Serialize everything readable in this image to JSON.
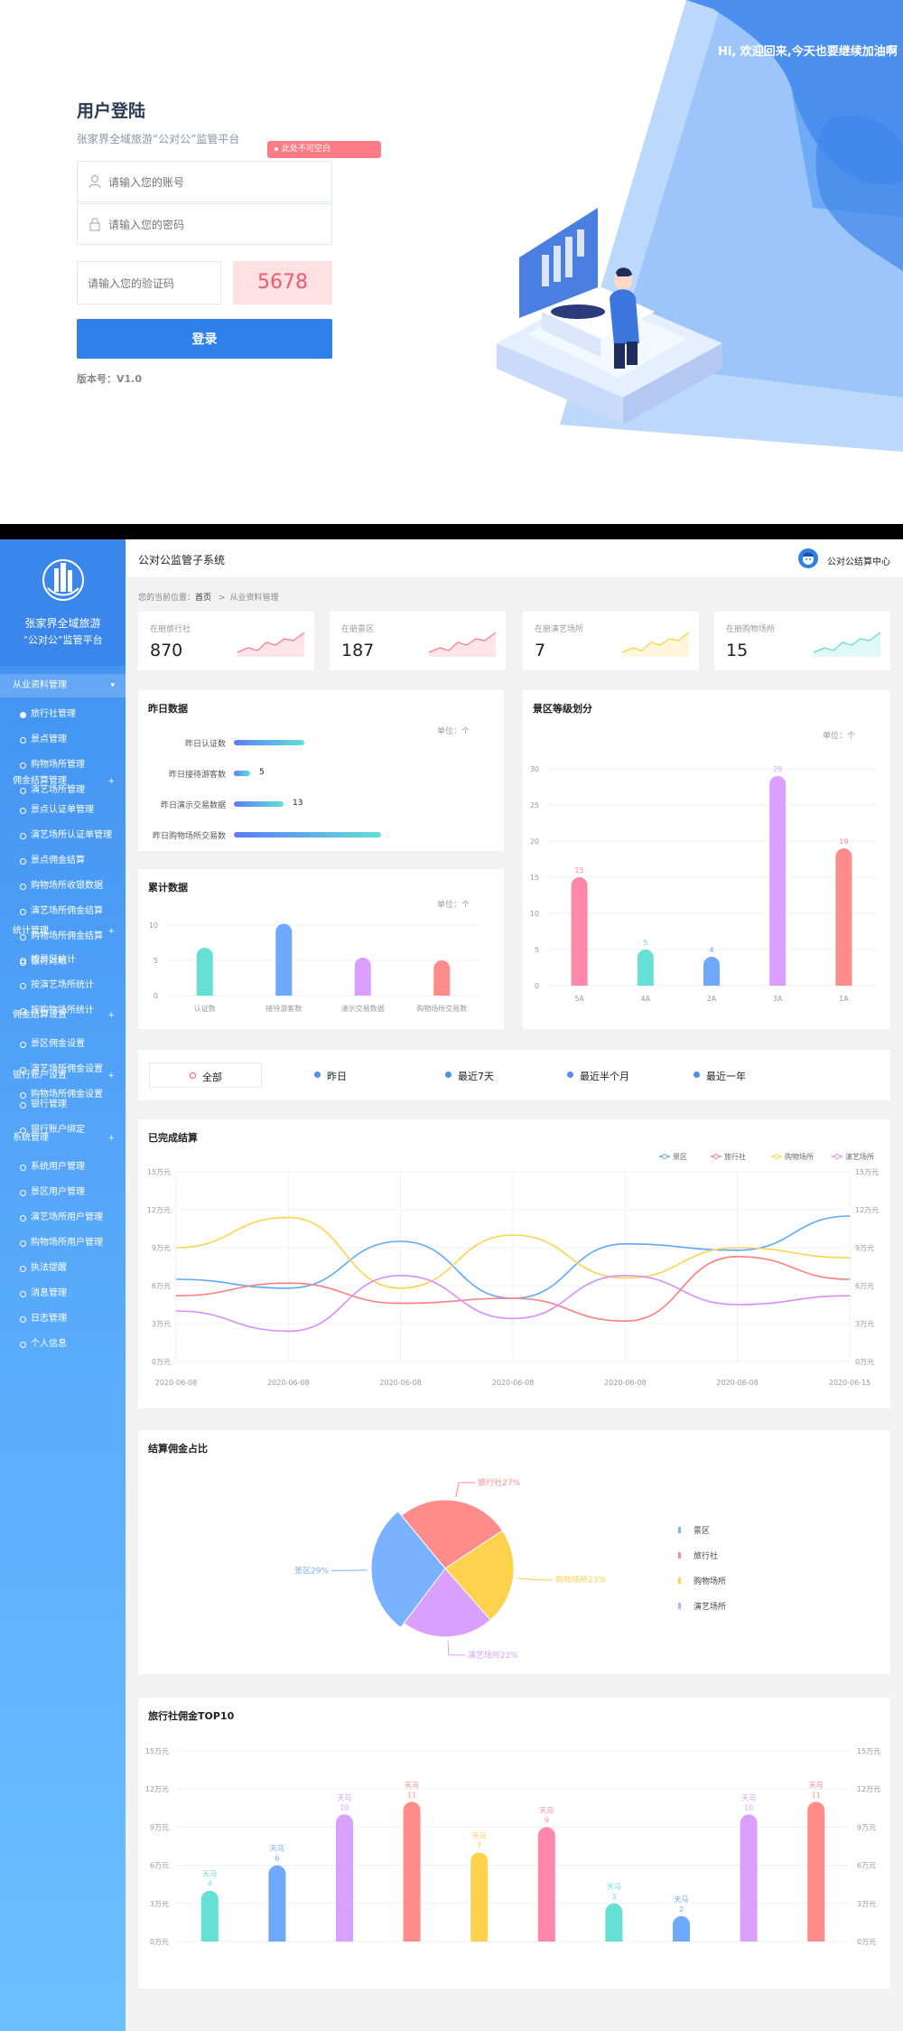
{
  "login": {
    "greeting": "Hi, 欢迎回来,今天也要继续加油啊",
    "title": "用户登陆",
    "subtitle": "张家界全域旅游“公对公”监管平台",
    "error_tip": "此处不可空白",
    "account_placeholder": "请输入您的账号",
    "password_placeholder": "请输入您的密码",
    "captcha_placeholder": "请输入您的验证码",
    "captcha_code": "5678",
    "login_button": "登录",
    "version": "版本号：V1.0"
  },
  "sidebar": {
    "logo_line1": "张家界全域旅游",
    "logo_line2": "“公对公”监管平台",
    "groups": [
      {
        "label": "从业资料管理",
        "items": [
          "旅行社管理",
          "景点管理",
          "购物场所管理",
          "演艺场所管理"
        ]
      },
      {
        "label": "佣金结算管理",
        "items": [
          "景点认证单管理",
          "演艺场所认证单管理",
          "景点佣金结算",
          "购物场所收银数据",
          "演艺场所佣金结算",
          "购物场所佣金结算",
          "银行对账"
        ]
      },
      {
        "label": "统计管理",
        "items": [
          "按景区统计",
          "按演艺场所统计",
          "按购物场所统计"
        ]
      },
      {
        "label": "佣金结算设置",
        "items": [
          "景区佣金设置",
          "演艺场所佣金设置",
          "购物场所佣金设置"
        ]
      },
      {
        "label": "银行账户设置",
        "items": [
          "银行管理",
          "银行账户绑定"
        ]
      },
      {
        "label": "系统管理",
        "items": [
          "系统用户管理",
          "景区用户管理",
          "演艺场所用户管理",
          "购物场所用户管理",
          "执法提醒",
          "消息管理",
          "日志管理",
          "个人信息"
        ]
      }
    ]
  },
  "header": {
    "title": "公对公监管子系统",
    "user": "公对公结算中心"
  },
  "breadcrumb": {
    "prefix": "您的当前位置：",
    "home": "首页",
    "sep": ">",
    "current": "从业资料管理"
  },
  "stats": [
    {
      "label": "在册旅行社",
      "value": "870",
      "color": "#ff7f93"
    },
    {
      "label": "在册景区",
      "value": "187",
      "color": "#ff7f93"
    },
    {
      "label": "在册演艺场所",
      "value": "7",
      "color": "#ffd24d"
    },
    {
      "label": "在册购物场所",
      "value": "15",
      "color": "#66e0d4"
    }
  ],
  "yesterday": {
    "title": "昨日数据",
    "unit": "单位：个",
    "rows": [
      {
        "label": "昨日认证数",
        "value": "",
        "fill": 0.31
      },
      {
        "label": "昨日接待游客数",
        "value": "5",
        "fill": 0.07
      },
      {
        "label": "昨日演示交易数据",
        "value": "13",
        "fill": 0.22
      },
      {
        "label": "昨日购物场所交易数",
        "value": "",
        "fill": 0.65
      }
    ]
  },
  "cumulative": {
    "title": "累计数据",
    "unit": "单位：个",
    "chart_data": {
      "type": "bar",
      "categories": [
        "认证数",
        "接待游客数",
        "演示交易数据",
        "购物场所交易数"
      ],
      "values": [
        6.8,
        10.2,
        5.4,
        5.0
      ],
      "ylim": [
        0,
        10
      ],
      "yticks": [
        "0",
        "5",
        "10"
      ],
      "colors": [
        "#66e0d4",
        "#6ea8ff",
        "#d9a0ff",
        "#ff8b8b"
      ]
    }
  },
  "scenic": {
    "title": "景区等级划分",
    "unit": "单位：个",
    "chart_data": {
      "type": "bar",
      "categories": [
        "5A",
        "4A",
        "2A",
        "3A",
        "1A"
      ],
      "values": [
        15,
        5,
        4,
        29,
        19
      ],
      "ylim": [
        0,
        30
      ],
      "yticks": [
        "0",
        "5",
        "10",
        "15",
        "20",
        "25",
        "30"
      ],
      "colors": [
        "#ff88aa",
        "#66e0d4",
        "#6ea8ff",
        "#d9a0ff",
        "#ff8b8b"
      ]
    }
  },
  "filters": [
    {
      "label": "全部",
      "active": true
    },
    {
      "label": "昨日",
      "active": false
    },
    {
      "label": "最近7天",
      "active": false
    },
    {
      "label": "最近半个月",
      "active": false
    },
    {
      "label": "最近一年",
      "active": false
    }
  ],
  "completed": {
    "title": "已完成结算",
    "chart_data": {
      "type": "line",
      "x": [
        "2020-06-08",
        "2020-06-08",
        "2020-06-08",
        "2020-06-08",
        "2020-06-08",
        "2020-06-08",
        "2020-06-15"
      ],
      "yticks": [
        "0万元",
        "3万元",
        "6万元",
        "9万元",
        "12万元",
        "15万元"
      ],
      "ylim": [
        0,
        15
      ],
      "series": [
        {
          "name": "景区",
          "color": "#5aa9ff",
          "values": [
            6.5,
            5.8,
            9.5,
            5.0,
            9.3,
            8.8,
            11.5
          ]
        },
        {
          "name": "旅行社",
          "color": "#ff7f7f",
          "values": [
            5.2,
            6.2,
            4.6,
            5.0,
            3.2,
            8.3,
            6.5
          ]
        },
        {
          "name": "购物场所",
          "color": "#ffd24d",
          "values": [
            9.0,
            11.4,
            5.8,
            10.0,
            6.6,
            9.0,
            8.2
          ]
        },
        {
          "name": "演艺场所",
          "color": "#d98cff",
          "values": [
            4.0,
            2.4,
            6.8,
            3.4,
            6.8,
            4.5,
            5.2
          ]
        }
      ]
    }
  },
  "ratio": {
    "title": "结算佣金占比",
    "chart_data": {
      "type": "pie",
      "slices": [
        {
          "name": "景区",
          "label": "景区29%",
          "value": 29,
          "color": "#7bb2ff"
        },
        {
          "name": "旅行社",
          "label": "旅行社27%",
          "value": 27,
          "color": "#ff8b8b"
        },
        {
          "name": "购物场所",
          "label": "购物场所23%",
          "value": 23,
          "color": "#ffd24d"
        },
        {
          "name": "演艺场所",
          "label": "演艺场所22%",
          "value": 22,
          "color": "#d9a0ff"
        }
      ]
    }
  },
  "top10": {
    "title": "旅行社佣金TOP10",
    "chart_data": {
      "type": "bar",
      "yticks": [
        "0万元",
        "3万元",
        "6万元",
        "9万元",
        "12万元",
        "15万元"
      ],
      "ylim": [
        0,
        15
      ],
      "bars": [
        {
          "name": "天马",
          "value": 4,
          "color": "#66e0d4"
        },
        {
          "name": "天马",
          "value": 6,
          "color": "#6ea8ff"
        },
        {
          "name": "天马",
          "value": 10,
          "color": "#d9a0ff"
        },
        {
          "name": "天马",
          "value": 11,
          "color": "#ff8b8b"
        },
        {
          "name": "天马",
          "value": 7,
          "color": "#ffd24d"
        },
        {
          "name": "天马",
          "value": 9,
          "color": "#ff88aa"
        },
        {
          "name": "天马",
          "value": 3,
          "color": "#66e0d4"
        },
        {
          "name": "天马",
          "value": 2,
          "color": "#6ea8ff"
        },
        {
          "name": "天马",
          "value": 10,
          "color": "#d9a0ff"
        },
        {
          "name": "天马",
          "value": 11,
          "color": "#ff8b8b"
        }
      ]
    }
  }
}
